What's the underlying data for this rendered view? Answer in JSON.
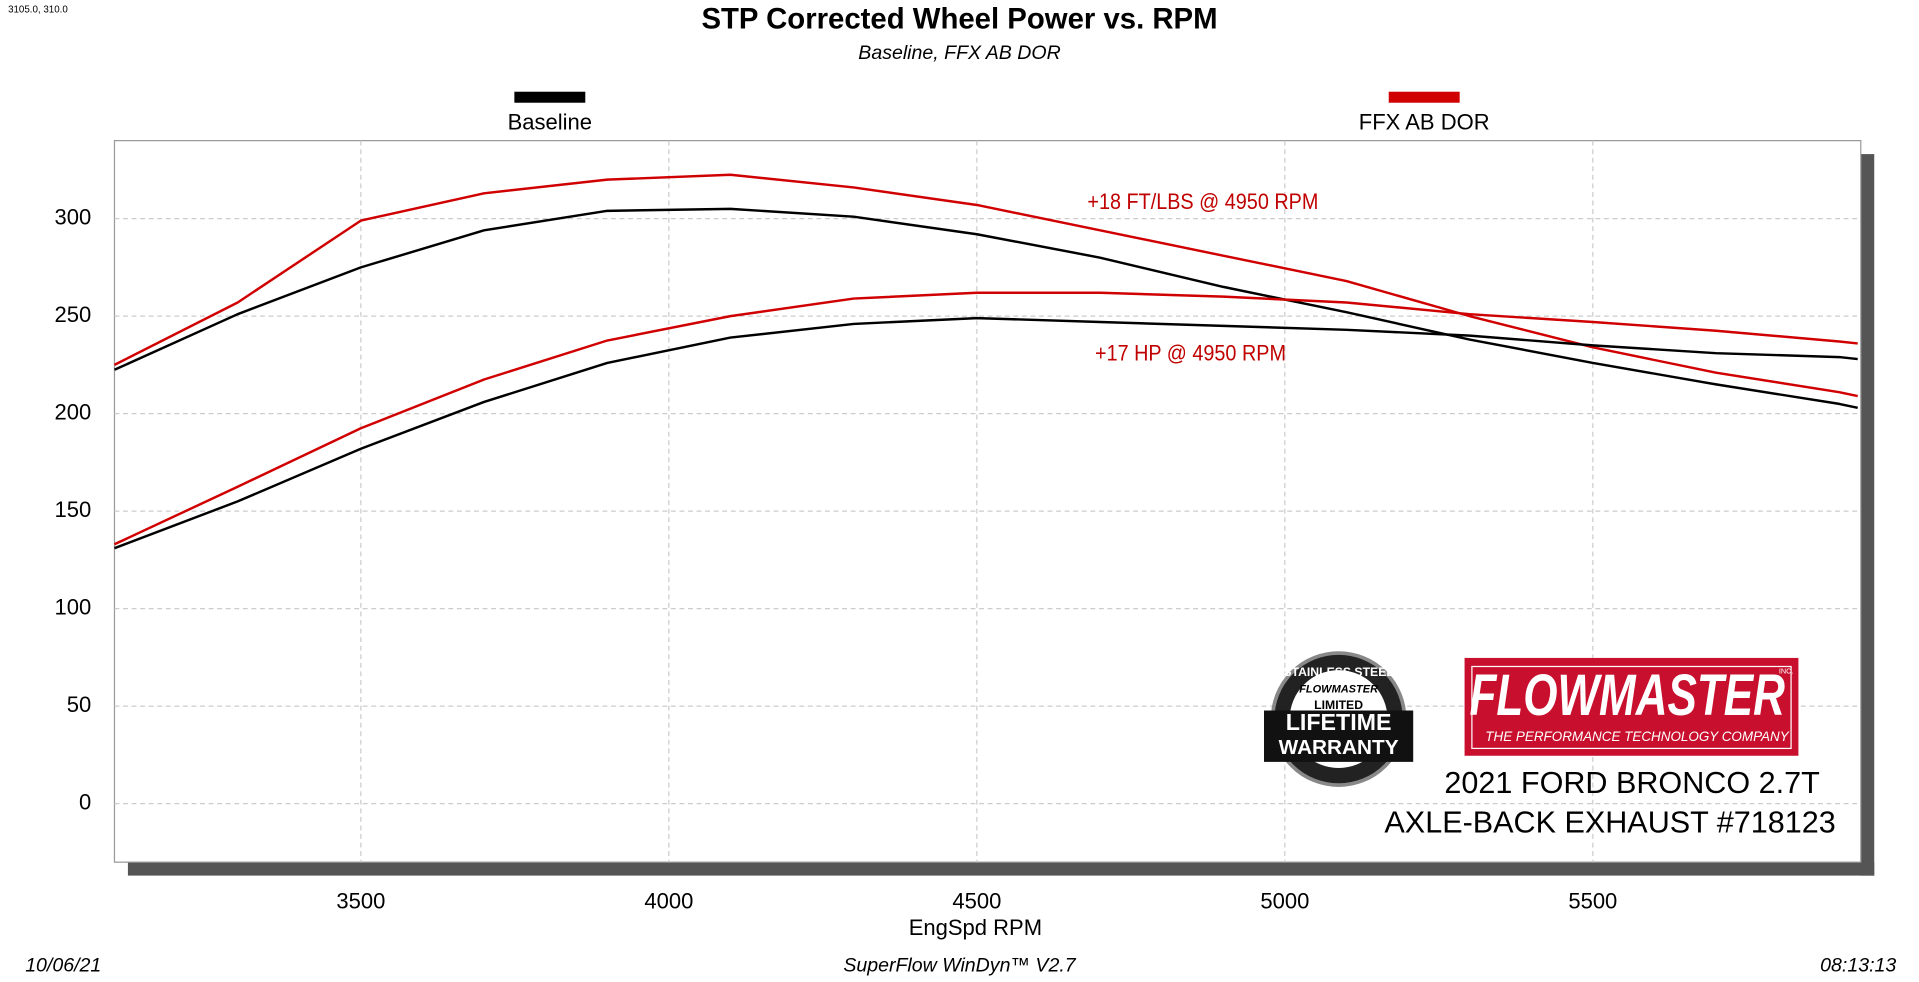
{
  "chart_data": {
    "type": "line",
    "title": "STP Corrected Wheel Power vs. RPM",
    "subtitle": "Baseline, FFX AB DOR",
    "corner_label": "3105.0, 310.0",
    "x_label": "EngSpd  RPM",
    "x": [
      3100,
      3300,
      3500,
      3700,
      3900,
      4100,
      4300,
      4500,
      4700,
      4900,
      5100,
      5300,
      5500,
      5700,
      5900,
      5930
    ],
    "series": [
      {
        "name": "Baseline",
        "color": "#000000",
        "values": [
          222.5,
          251,
          275,
          294,
          304,
          305,
          301,
          292,
          280,
          265,
          252,
          238,
          226,
          215,
          205,
          203
        ]
      },
      {
        "name": "FFX AB DOR",
        "color": "#d00000",
        "values": [
          225,
          257,
          299,
          313,
          320,
          322.5,
          316,
          307,
          294,
          281,
          268,
          250,
          234,
          221,
          211,
          209
        ]
      },
      {
        "name": "Baseline",
        "color": "#000000",
        "values": [
          131,
          155,
          182,
          206,
          226,
          239,
          246,
          249,
          247,
          245,
          243,
          240,
          235,
          231,
          229,
          228
        ]
      },
      {
        "name": "FFX AB DOR",
        "color": "#d00000",
        "values": [
          133,
          162.5,
          192.5,
          217.5,
          237.5,
          250,
          259,
          262,
          262,
          260,
          257,
          251,
          247,
          242.5,
          237,
          236
        ]
      }
    ],
    "xlim": [
      3100,
      5935
    ],
    "xticks": [
      3500,
      4000,
      4500,
      5000,
      5500
    ],
    "ylim": [
      -30,
      340
    ],
    "yticks": [
      0,
      50,
      100,
      150,
      200,
      250,
      300
    ],
    "grid": true,
    "annotations": [
      "+18 FT/LBS @ 4950 RPM",
      "+17 HP @ 4950 RPM"
    ],
    "badge": {
      "ring": "STAINLESS STEEL",
      "brand": "FLOWMASTER",
      "limited": "LIMITED",
      "line1": "LIFETIME",
      "line2": "WARRANTY"
    },
    "logo": {
      "brand": "FLOWMASTER",
      "inc": "INC.",
      "tagline": "THE PERFORMANCE TECHNOLOGY COMPANY"
    },
    "vehicle": "2021 FORD BRONCO 2.7T",
    "product": "AXLE-BACK EXHAUST #718123",
    "footer": {
      "date": "10/06/21",
      "software": "SuperFlow WinDyn™ V2.7",
      "time": "08:13:13"
    }
  }
}
